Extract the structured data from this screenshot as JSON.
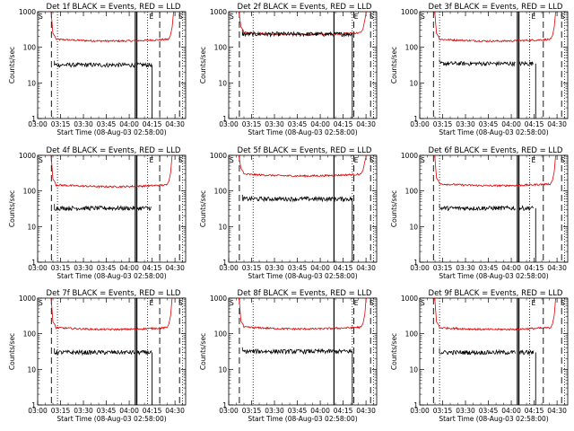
{
  "figure": {
    "xlabel": "Start Time (08-Aug-03 02:58:00)",
    "ylabel": "Counts/sec",
    "xticks": [
      "03:00",
      "03:15",
      "03:30",
      "03:45",
      "04:00",
      "04:15",
      "04:30"
    ],
    "yticks": [
      "1",
      "10",
      "100",
      "1000"
    ],
    "marker_labels": [
      "S",
      "E",
      "S"
    ]
  },
  "chart_data": [
    {
      "type": "line",
      "title": "Det 1f BLACK = Events, RED = LLD",
      "xlim": [
        "03:00",
        "04:37"
      ],
      "ylim": [
        1,
        1000
      ],
      "yscale": "log",
      "series": [
        {
          "name": "BLACK = Events",
          "color": "#000000",
          "level": 32,
          "segments": [
            [
              "03:11",
              "04:04"
            ],
            [
              "04:05",
              "04:15"
            ]
          ],
          "drop": "04:15"
        },
        {
          "name": "RED = LLD",
          "color": "#dd0000",
          "level": 170,
          "ramp_start": "03:09",
          "ramp_end": "04:29"
        }
      ],
      "solid_lines": [
        "04:04",
        "04:05"
      ],
      "dashed_lines": [
        "03:09",
        "04:20",
        "04:33"
      ],
      "dotted_lines": [
        "03:13",
        "04:12",
        "04:35"
      ]
    },
    {
      "type": "line",
      "title": "Det 2f BLACK = Events, RED = LLD",
      "xlim": [
        "03:00",
        "04:37"
      ],
      "ylim": [
        1,
        1000
      ],
      "yscale": "log",
      "series": [
        {
          "name": "BLACK = Events",
          "color": "#000000",
          "level": 235,
          "segments": [
            [
              "03:09",
              "04:09"
            ],
            [
              "04:09",
              "04:21"
            ]
          ],
          "drop": "04:21"
        },
        {
          "name": "RED = LLD",
          "color": "#dd0000",
          "level": 260,
          "ramp_start": "03:07",
          "ramp_end": "04:30"
        }
      ],
      "solid_lines": [
        "04:09"
      ],
      "dashed_lines": [
        "03:07",
        "04:22",
        "04:33"
      ],
      "dotted_lines": [
        "03:16",
        "04:21",
        "04:35"
      ]
    },
    {
      "type": "line",
      "title": "Det 3f BLACK = Events, RED = LLD",
      "xlim": [
        "03:00",
        "04:37"
      ],
      "ylim": [
        1,
        1000
      ],
      "yscale": "log",
      "series": [
        {
          "name": "BLACK = Events",
          "color": "#000000",
          "level": 35,
          "segments": [
            [
              "03:13",
              "04:03"
            ],
            [
              "04:05",
              "04:15"
            ]
          ],
          "drop": "04:16"
        },
        {
          "name": "RED = LLD",
          "color": "#dd0000",
          "level": 170,
          "ramp_start": "03:10",
          "ramp_end": "04:29"
        }
      ],
      "solid_lines": [
        "04:04",
        "04:05"
      ],
      "dashed_lines": [
        "03:09",
        "04:21",
        "04:33"
      ],
      "dotted_lines": [
        "03:13",
        "04:12",
        "04:35"
      ]
    },
    {
      "type": "line",
      "title": "Det 4f BLACK = Events, RED = LLD",
      "xlim": [
        "03:00",
        "04:37"
      ],
      "ylim": [
        1,
        1000
      ],
      "yscale": "log",
      "series": [
        {
          "name": "BLACK = Events",
          "color": "#000000",
          "level": 33,
          "segments": [
            [
              "03:11",
              "04:04"
            ],
            [
              "04:05",
              "04:15"
            ]
          ],
          "drop": null
        },
        {
          "name": "RED = LLD",
          "color": "#dd0000",
          "level": 150,
          "ramp_start": "03:09",
          "ramp_end": "04:28"
        }
      ],
      "solid_lines": [
        "04:04",
        "04:05"
      ],
      "dashed_lines": [
        "03:09",
        "04:20",
        "04:33"
      ],
      "dotted_lines": [
        "03:13",
        "04:12",
        "04:35"
      ]
    },
    {
      "type": "line",
      "title": "Det 5f BLACK = Events, RED = LLD",
      "xlim": [
        "03:00",
        "04:37"
      ],
      "ylim": [
        1,
        1000
      ],
      "yscale": "log",
      "series": [
        {
          "name": "BLACK = Events",
          "color": "#000000",
          "level": 60,
          "segments": [
            [
              "03:09",
              "04:09"
            ],
            [
              "04:09",
              "04:21"
            ]
          ],
          "drop": "04:21"
        },
        {
          "name": "RED = LLD",
          "color": "#dd0000",
          "level": 300,
          "ramp_start": "03:07",
          "ramp_end": "04:30"
        }
      ],
      "solid_lines": [
        "04:09"
      ],
      "dashed_lines": [
        "03:07",
        "04:22",
        "04:33"
      ],
      "dotted_lines": [
        "03:16",
        "04:21",
        "04:35"
      ]
    },
    {
      "type": "line",
      "title": "Det 6f BLACK = Events, RED = LLD",
      "xlim": [
        "03:00",
        "04:37"
      ],
      "ylim": [
        1,
        1000
      ],
      "yscale": "log",
      "series": [
        {
          "name": "BLACK = Events",
          "color": "#000000",
          "level": 33,
          "segments": [
            [
              "03:13",
              "04:03"
            ],
            [
              "04:05",
              "04:15"
            ]
          ],
          "drop": "04:16"
        },
        {
          "name": "RED = LLD",
          "color": "#dd0000",
          "level": 160,
          "ramp_start": "03:10",
          "ramp_end": "04:29"
        }
      ],
      "solid_lines": [
        "04:04",
        "04:05"
      ],
      "dashed_lines": [
        "03:09",
        "04:21",
        "04:33"
      ],
      "dotted_lines": [
        "03:13",
        "04:12",
        "04:35"
      ]
    },
    {
      "type": "line",
      "title": "Det 7f BLACK = Events, RED = LLD",
      "xlim": [
        "03:00",
        "04:37"
      ],
      "ylim": [
        1,
        1000
      ],
      "yscale": "log",
      "series": [
        {
          "name": "BLACK = Events",
          "color": "#000000",
          "level": 30,
          "segments": [
            [
              "03:11",
              "04:04"
            ],
            [
              "04:05",
              "04:15"
            ]
          ],
          "drop": "04:15"
        },
        {
          "name": "RED = LLD",
          "color": "#dd0000",
          "level": 150,
          "ramp_start": "03:09",
          "ramp_end": "04:28"
        }
      ],
      "solid_lines": [
        "04:04",
        "04:05"
      ],
      "dashed_lines": [
        "03:09",
        "04:20",
        "04:33"
      ],
      "dotted_lines": [
        "03:13",
        "04:12",
        "04:35"
      ]
    },
    {
      "type": "line",
      "title": "Det 8f BLACK = Events, RED = LLD",
      "xlim": [
        "03:00",
        "04:37"
      ],
      "ylim": [
        1,
        1000
      ],
      "yscale": "log",
      "series": [
        {
          "name": "BLACK = Events",
          "color": "#000000",
          "level": 32,
          "segments": [
            [
              "03:09",
              "04:09"
            ],
            [
              "04:09",
              "04:21"
            ]
          ],
          "drop": "04:21"
        },
        {
          "name": "RED = LLD",
          "color": "#dd0000",
          "level": 155,
          "ramp_start": "03:07",
          "ramp_end": "04:30"
        }
      ],
      "solid_lines": [
        "04:09"
      ],
      "dashed_lines": [
        "03:07",
        "04:22",
        "04:33"
      ],
      "dotted_lines": [
        "03:16",
        "04:21",
        "04:35"
      ]
    },
    {
      "type": "line",
      "title": "Det 9f BLACK = Events, RED = LLD",
      "xlim": [
        "03:00",
        "04:37"
      ],
      "ylim": [
        1,
        1000
      ],
      "yscale": "log",
      "series": [
        {
          "name": "BLACK = Events",
          "color": "#000000",
          "level": 30,
          "segments": [
            [
              "03:13",
              "04:03"
            ],
            [
              "04:05",
              "04:15"
            ]
          ],
          "drop": "04:16"
        },
        {
          "name": "RED = LLD",
          "color": "#dd0000",
          "level": 150,
          "ramp_start": "03:10",
          "ramp_end": "04:29"
        }
      ],
      "solid_lines": [
        "04:04",
        "04:05"
      ],
      "dashed_lines": [
        "03:09",
        "04:21",
        "04:33"
      ],
      "dotted_lines": [
        "03:13",
        "04:12",
        "04:35"
      ]
    }
  ]
}
